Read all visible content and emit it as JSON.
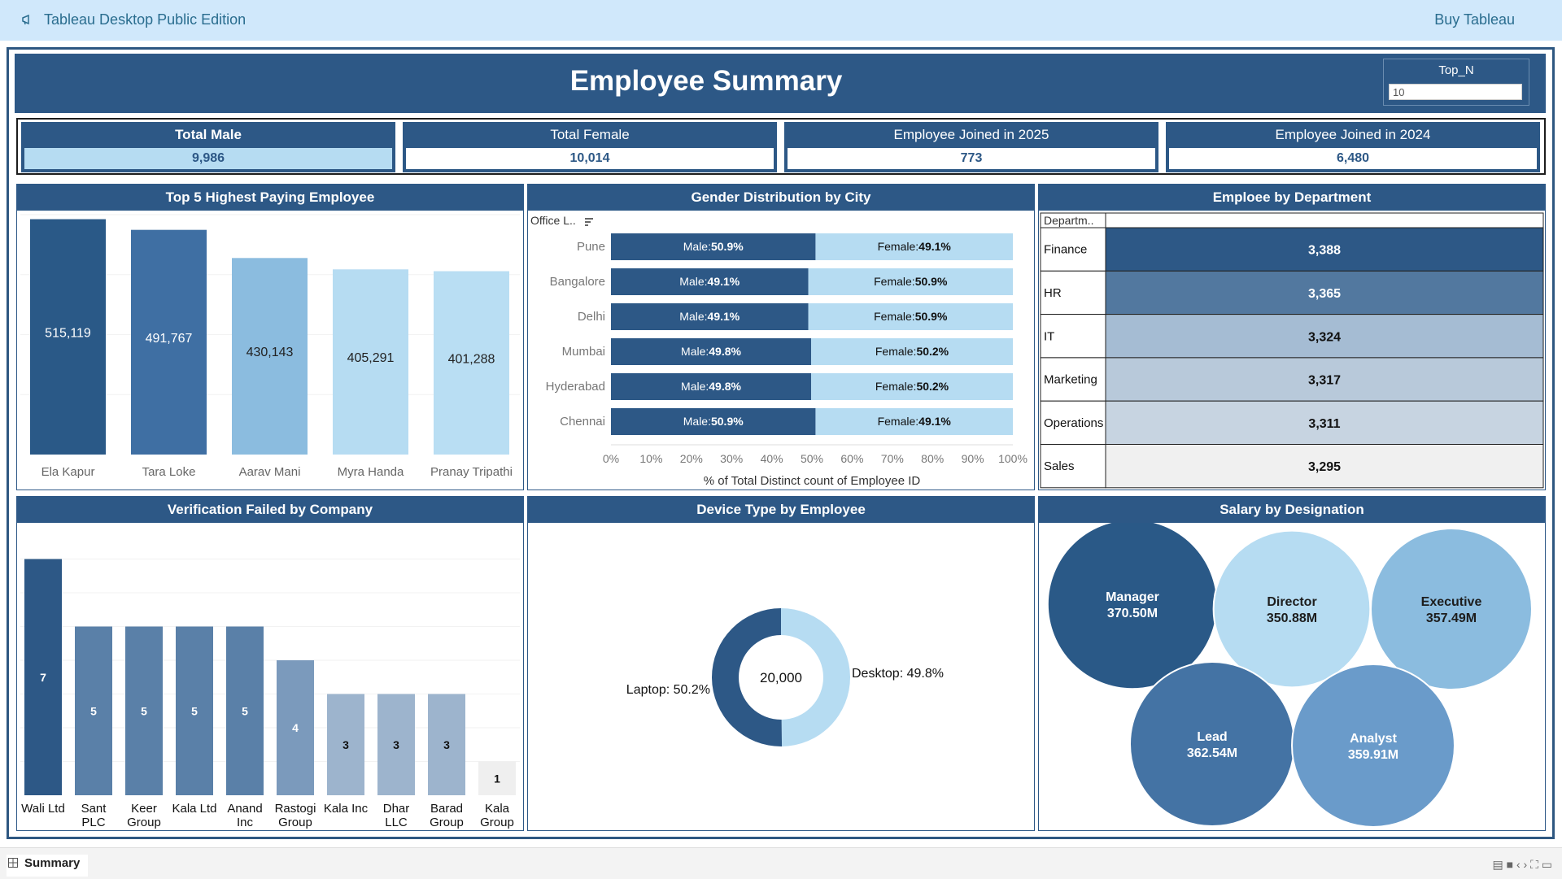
{
  "app": {
    "title": "Tableau Desktop Public Edition",
    "buy_label": "Buy Tableau"
  },
  "dashboard": {
    "title": "Employee Summary",
    "top_n": {
      "label": "Top_N",
      "value": "10"
    }
  },
  "kpis": [
    {
      "label": "Total Male",
      "value": "9,986"
    },
    {
      "label": "Total Female",
      "value": "10,014"
    },
    {
      "label": "Employee Joined in 2025",
      "value": "773"
    },
    {
      "label": "Employee Joined in 2024",
      "value": "6,480"
    }
  ],
  "panels": {
    "top5": "Top 5 Highest Paying Employee",
    "gender": "Gender Distribution by City",
    "dept": "Emploee by Department",
    "verif": "Verification Failed by Company",
    "device": "Device Type by Employee",
    "salary": "Salary by Designation"
  },
  "colors": {
    "dark": "#2d5886",
    "mid": "#4f7aab",
    "light": "#b6dcf2"
  },
  "chart_data": [
    {
      "type": "bar",
      "title": "Top 5 Highest Paying Employee",
      "categories": [
        "Ela Kapur",
        "Tara Loke",
        "Aarav Mani",
        "Myra Handa",
        "Pranay Tripathi"
      ],
      "values": [
        515119,
        491767,
        430143,
        405291,
        401288
      ],
      "labels": [
        "515,119",
        "491,767",
        "430,143",
        "405,291",
        "401,288"
      ],
      "colors": [
        "#2a5987",
        "#3f6fa3",
        "#8bbcdf",
        "#b6dcf2",
        "#b9def3"
      ]
    },
    {
      "type": "bar",
      "title": "Gender Distribution by City",
      "filter_label": "Office L..",
      "categories": [
        "Pune",
        "Bangalore",
        "Delhi",
        "Mumbai",
        "Hyderabad",
        "Chennai"
      ],
      "series": [
        {
          "name": "Male",
          "values": [
            50.9,
            49.1,
            49.1,
            49.8,
            49.8,
            50.9
          ]
        },
        {
          "name": "Female",
          "values": [
            49.1,
            50.9,
            50.9,
            50.2,
            50.2,
            49.1
          ]
        }
      ],
      "male_labels": [
        "50.9%",
        "49.1%",
        "49.1%",
        "49.8%",
        "49.8%",
        "50.9%"
      ],
      "female_labels": [
        "49.1%",
        "50.9%",
        "50.9%",
        "50.2%",
        "50.2%",
        "49.1%"
      ],
      "xticks": [
        "0%",
        "10%",
        "20%",
        "30%",
        "40%",
        "50%",
        "60%",
        "70%",
        "80%",
        "90%",
        "100%"
      ],
      "xlabel": "% of Total Distinct count of Employee ID"
    },
    {
      "type": "table",
      "title": "Emploee by Department",
      "header": "Departm..",
      "categories": [
        "Finance",
        "HR",
        "IT",
        "Marketing",
        "Operations",
        "Sales"
      ],
      "values": [
        3388,
        3365,
        3324,
        3317,
        3311,
        3295
      ],
      "labels": [
        "3,388",
        "3,365",
        "3,324",
        "3,317",
        "3,311",
        "3,295"
      ],
      "colors": [
        "#2d5886",
        "#52789f",
        "#a5bcd3",
        "#b8c9da",
        "#c7d4e1",
        "#f0f0f0"
      ]
    },
    {
      "type": "bar",
      "title": "Verification Failed by Company",
      "categories": [
        "Wali Ltd",
        "Sant PLC",
        "Keer Group",
        "Kala Ltd",
        "Anand Inc",
        "Rastogi Group",
        "Kala Inc",
        "Dhar LLC",
        "Barad Group",
        "Kala Group"
      ],
      "values": [
        7,
        5,
        5,
        5,
        5,
        4,
        3,
        3,
        3,
        1
      ],
      "colors": [
        "#2d5886",
        "#5a80a8",
        "#5a80a8",
        "#5a80a8",
        "#5a80a8",
        "#7b9abc",
        "#9db4cd",
        "#9db4cd",
        "#9db4cd",
        "#efefef"
      ]
    },
    {
      "type": "pie",
      "title": "Device Type by Employee",
      "categories": [
        "Laptop",
        "Desktop"
      ],
      "values": [
        50.2,
        49.8
      ],
      "labels": [
        "Laptop: 50.2%",
        "Desktop: 49.8%"
      ],
      "center_label": "20,000",
      "colors": [
        "#2d5886",
        "#b6dcf2"
      ]
    },
    {
      "type": "scatter",
      "title": "Salary by Designation",
      "categories": [
        "Manager",
        "Director",
        "Executive",
        "Lead",
        "Analyst"
      ],
      "values": [
        370.5,
        350.88,
        357.49,
        362.54,
        359.91
      ],
      "labels": [
        "370.50M",
        "350.88M",
        "357.49M",
        "362.54M",
        "359.91M"
      ],
      "colors": [
        "#2a5987",
        "#b6dcf2",
        "#8bbcdf",
        "#4473a4",
        "#6a9bca"
      ],
      "text_colors": [
        "#ffffff",
        "#1d1d1d",
        "#1d1d1d",
        "#ffffff",
        "#ffffff"
      ]
    }
  ],
  "sheet_tab": "Summary"
}
